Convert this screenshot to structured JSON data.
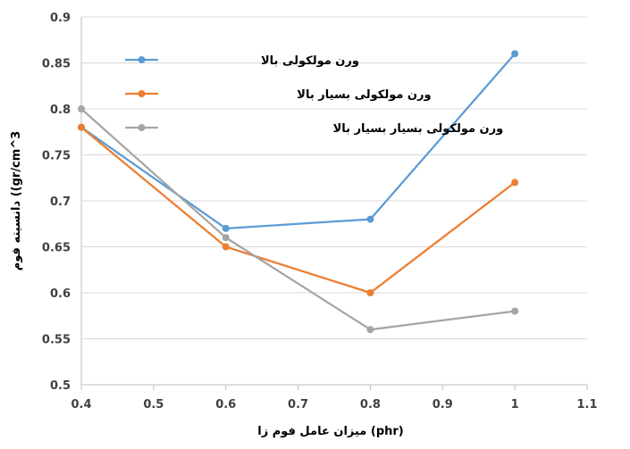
{
  "chart_data": {
    "type": "line",
    "xlabel": "میزان عامل فوم زا (phr)",
    "ylabel": "دانسیته فوم ((gr/cm^3",
    "xlim": [
      0.4,
      1.1
    ],
    "ylim": [
      0.5,
      0.9
    ],
    "xticks": [
      "0.4",
      "0.5",
      "0.6",
      "0.7",
      "0.8",
      "0.9",
      "1",
      "1.1"
    ],
    "yticks": [
      "0.5",
      "0.55",
      "0.6",
      "0.65",
      "0.7",
      "0.75",
      "0.8",
      "0.85",
      "0.9"
    ],
    "grid": "horizontal",
    "legend_position": "top-left",
    "x": [
      0.4,
      0.6,
      0.8,
      1.0
    ],
    "series": [
      {
        "name": "ورن مولکولی بالا",
        "color": "#5b9bd5",
        "values": [
          0.78,
          0.67,
          0.68,
          0.86
        ]
      },
      {
        "name": "ورن مولکولی بسیار بالا",
        "color": "#ed7d31",
        "values": [
          0.78,
          0.65,
          0.6,
          0.72
        ]
      },
      {
        "name": "ورن مولکولی بسیار بسیار بالا",
        "color": "#a5a5a5",
        "values": [
          0.8,
          0.66,
          0.56,
          0.58
        ]
      }
    ]
  }
}
